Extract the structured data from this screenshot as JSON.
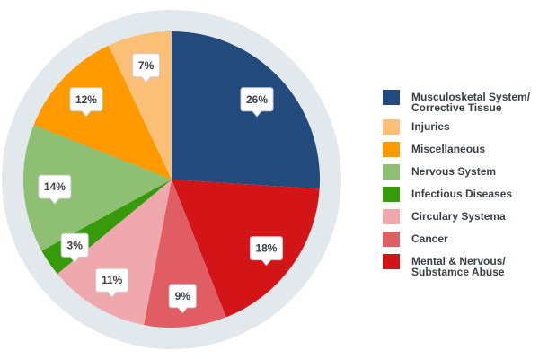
{
  "chart_data": {
    "type": "pie",
    "title": "",
    "legend_position": "right",
    "slices": [
      {
        "label": "Musculosketal System/\nCorrective Tissue",
        "value": 26,
        "display": "26%",
        "color": "#224a7d"
      },
      {
        "label": "Mental & Nervous/\nSubstamce Abuse",
        "value": 18,
        "display": "18%",
        "color": "#d41518"
      },
      {
        "label": "Cancer",
        "value": 9,
        "display": "9%",
        "color": "#e05e63"
      },
      {
        "label": "Circulary Systema",
        "value": 11,
        "display": "11%",
        "color": "#efa9ad"
      },
      {
        "label": "Infectious Diseases",
        "value": 3,
        "display": "3%",
        "color": "#379a0a"
      },
      {
        "label": "Nervous System",
        "value": 14,
        "display": "14%",
        "color": "#8ebf72"
      },
      {
        "label": "Miscellaneous",
        "value": 12,
        "display": "12%",
        "color": "#fe9a00"
      },
      {
        "label": "Injuries",
        "value": 7,
        "display": "7%",
        "color": "#fcbf78"
      }
    ],
    "legend_order": [
      "Musculosketal System/\nCorrective Tissue",
      "Injuries",
      "Miscellaneous",
      "Nervous System",
      "Infectious Diseases",
      "Circulary Systema",
      "Cancer",
      "Mental & Nervous/\nSubstamce Abuse"
    ]
  }
}
